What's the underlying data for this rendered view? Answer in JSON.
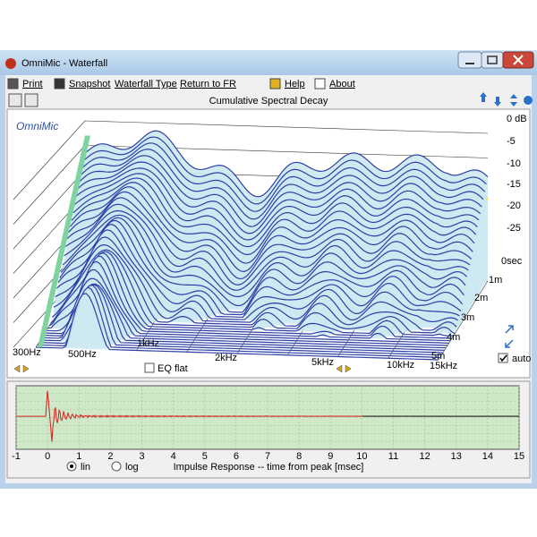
{
  "window": {
    "title": "OmniMic - Waterfall"
  },
  "menu": [
    "Print",
    "Snapshot",
    "Waterfall Type",
    "Return to FR",
    "Help",
    "About"
  ],
  "waterfall": {
    "title": "Cumulative Spectral Decay",
    "brand": "OmniMic",
    "db_ticks": [
      "0 dB",
      "-5",
      "-10",
      "-15",
      "-20",
      "-25"
    ],
    "time_ticks": [
      "0sec",
      "1m",
      "2m",
      "3m",
      "4m",
      "5m"
    ],
    "freq_ticks": [
      "300Hz",
      "500Hz",
      "1kHz",
      "2kHz",
      "5kHz",
      "10kHz",
      "15kHz"
    ],
    "eq_checkbox": "EQ flat",
    "auto_checkbox": "auto"
  },
  "impulse": {
    "xlabel": "Impulse Response  -- time from peak [msec]",
    "xlim": [
      -1,
      15
    ],
    "xticks": [
      -1,
      0,
      1,
      2,
      3,
      4,
      5,
      6,
      7,
      8,
      9,
      10,
      11,
      12,
      13,
      14,
      15
    ],
    "scale_options": [
      "lin",
      "log"
    ]
  }
}
